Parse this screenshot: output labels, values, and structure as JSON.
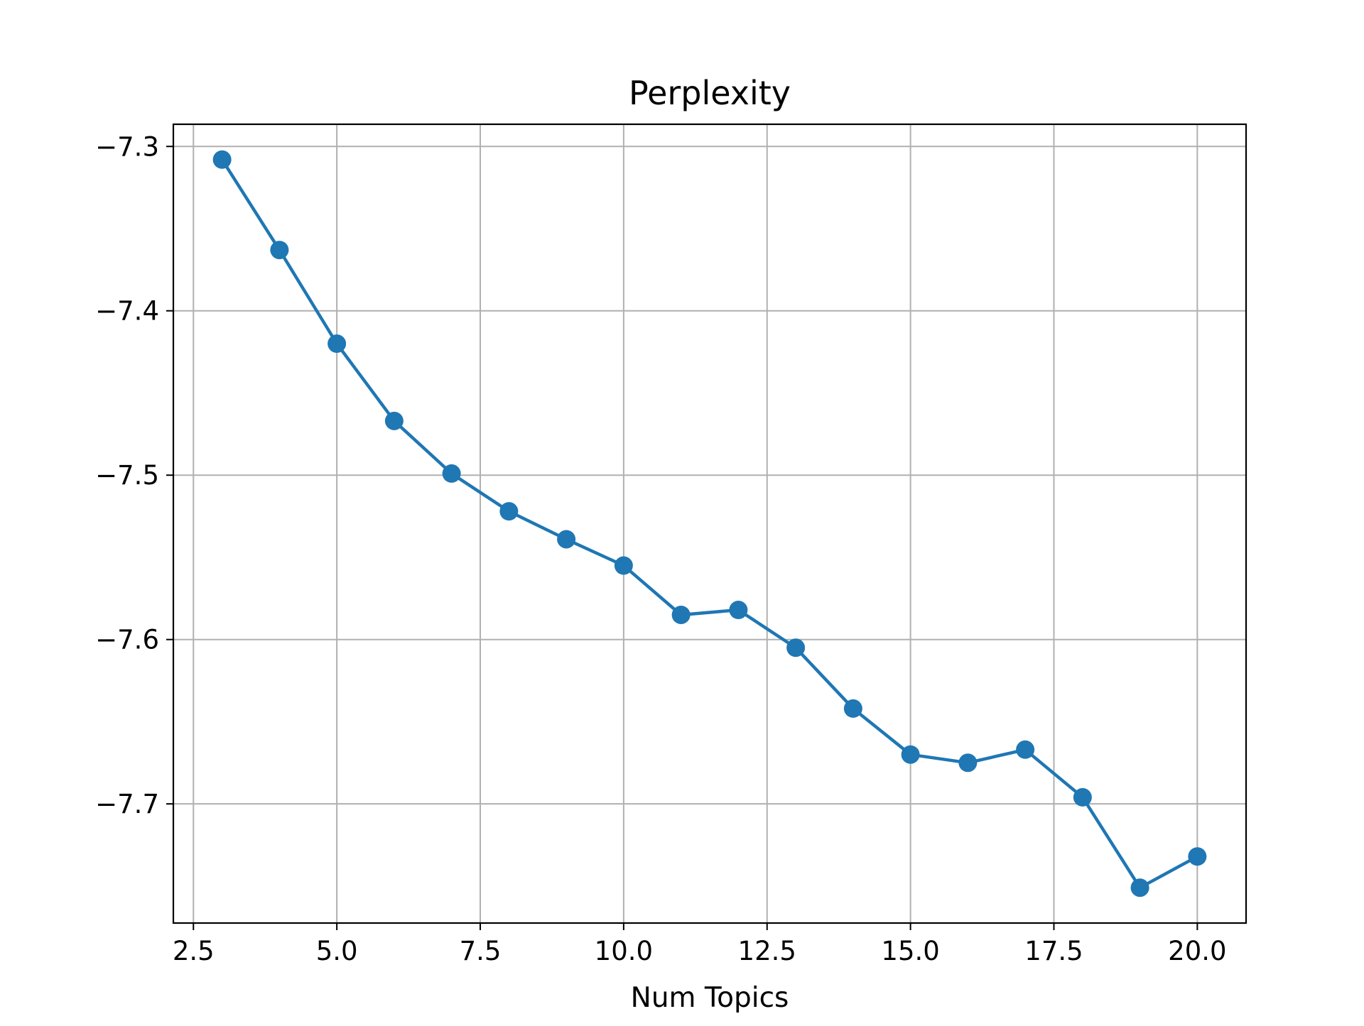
{
  "chart_data": {
    "type": "line",
    "title": "Perplexity",
    "xlabel": "Num Topics",
    "ylabel": "",
    "xlim": [
      2.15,
      20.85
    ],
    "ylim": [
      -7.7725,
      -7.2865
    ],
    "xticks": [
      2.5,
      5.0,
      7.5,
      10.0,
      12.5,
      15.0,
      17.5,
      20.0
    ],
    "xtick_labels": [
      "2.5",
      "5.0",
      "7.5",
      "10.0",
      "12.5",
      "15.0",
      "17.5",
      "20.0"
    ],
    "yticks": [
      -7.3,
      -7.4,
      -7.5,
      -7.6,
      -7.7
    ],
    "ytick_labels": [
      "−7.3",
      "−7.4",
      "−7.5",
      "−7.6",
      "−7.7"
    ],
    "grid": true,
    "series": [
      {
        "color": "#1f77b4",
        "marker": "circle",
        "x": [
          3,
          4,
          5,
          6,
          7,
          8,
          9,
          10,
          11,
          12,
          13,
          14,
          15,
          16,
          17,
          18,
          19,
          20
        ],
        "y": [
          -7.308,
          -7.363,
          -7.42,
          -7.467,
          -7.499,
          -7.522,
          -7.539,
          -7.555,
          -7.585,
          -7.582,
          -7.605,
          -7.642,
          -7.67,
          -7.675,
          -7.667,
          -7.696,
          -7.751,
          -7.732
        ]
      }
    ]
  }
}
